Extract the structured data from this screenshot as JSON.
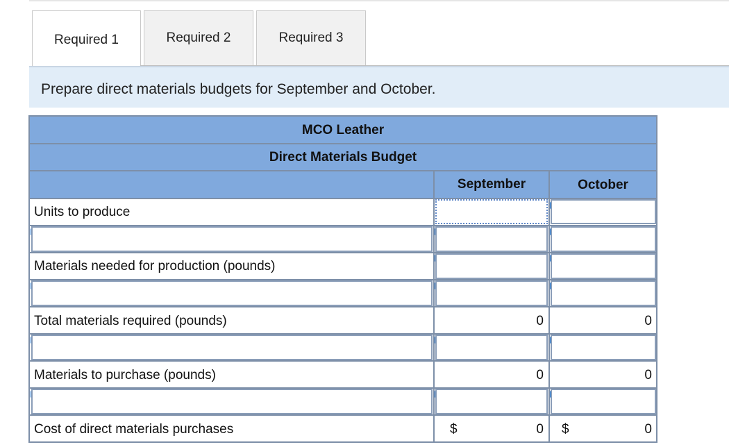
{
  "tabs": [
    {
      "label": "Required 1",
      "active": true
    },
    {
      "label": "Required 2",
      "active": false
    },
    {
      "label": "Required 3",
      "active": false
    }
  ],
  "instruction": "Prepare direct materials budgets for September and October.",
  "budget": {
    "company": "MCO Leather",
    "title": "Direct Materials Budget",
    "columns": [
      "September",
      "October"
    ],
    "rows": {
      "units_to_produce": "Units to produce",
      "materials_needed": "Materials needed for production (pounds)",
      "total_required": "Total materials required (pounds)",
      "to_purchase": "Materials to purchase (pounds)",
      "cost": "Cost of direct materials purchases"
    },
    "values": {
      "total_required": {
        "september": "0",
        "october": "0"
      },
      "to_purchase": {
        "september": "0",
        "october": "0"
      },
      "cost": {
        "currency": "$",
        "september": "0",
        "october": "0"
      }
    }
  },
  "colors": {
    "header_blue": "#80a9dd",
    "instruction_bg": "#e1edf8",
    "border": "#7d8fa8"
  }
}
